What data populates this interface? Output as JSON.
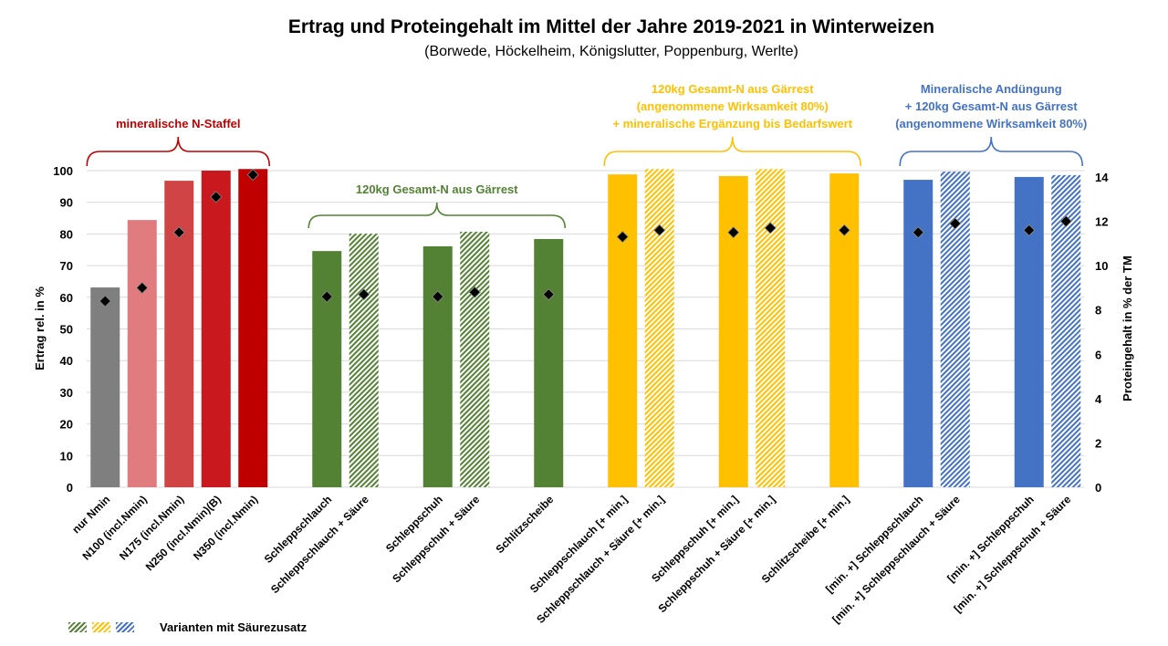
{
  "chart_data": {
    "type": "bar",
    "title": "Ertrag und Proteingehalt im Mittel der Jahre 2019-2021 in Winterweizen",
    "subtitle": "(Borwede, Höckelheim, Königslutter, Poppenburg, Werlte)",
    "ylabel": "Ertrag rel. in %",
    "y2label": "Proteingehalt in % der TM",
    "ylim": [
      0,
      100
    ],
    "y2lim": [
      0,
      14
    ],
    "yticks": [
      "0",
      "10",
      "20",
      "30",
      "40",
      "50",
      "60",
      "70",
      "80",
      "90",
      "100"
    ],
    "y2ticks": [
      "0",
      "2",
      "4",
      "6",
      "8",
      "10",
      "12",
      "14"
    ],
    "grid": true,
    "categories": [
      "nur Nmin",
      "N100 (incl.Nmin)",
      "N175 (incl.Nmin)",
      "N250 (incl.Nmin)(B)",
      "N350 (incl.Nmin)",
      "",
      "Schleppschlauch",
      "Schleppschlauch + Säure",
      "",
      "Schleppschuh",
      "Schleppschuh + Säure",
      "",
      "Schlitzscheibe",
      "",
      "Schleppschlauch [+ min.]",
      "Schleppschlauch + Säure [+ min.]",
      "",
      "Schleppschuh [+ min.]",
      "Schleppschuh + Säure [+ min.]",
      "",
      "Schlitzscheibe [+ min.]",
      "",
      "[min. +] Schleppschlauch",
      "[min. +] Schleppschlauch + Säure",
      "",
      "[min. +] Schleppschuh",
      "[min. +] Schleppschuh + Säure"
    ],
    "series": [
      {
        "name": "Ertrag rel. in %",
        "axis": "left",
        "values": [
          63.1,
          84.4,
          96.8,
          100,
          100.5,
          null,
          74.6,
          80.1,
          null,
          76.1,
          80.7,
          null,
          78.4,
          null,
          98.8,
          100.5,
          null,
          98.3,
          100.5,
          null,
          99.1,
          null,
          97.1,
          99.7,
          null,
          98.0,
          98.6
        ]
      },
      {
        "name": "Proteingehalt in % der TM",
        "axis": "right",
        "values": [
          8.4,
          9.0,
          11.5,
          13.1,
          14.1,
          null,
          8.6,
          8.7,
          null,
          8.6,
          8.8,
          null,
          8.7,
          null,
          11.3,
          11.6,
          null,
          11.5,
          11.7,
          null,
          11.6,
          null,
          11.5,
          11.9,
          null,
          11.6,
          12.0
        ]
      }
    ],
    "bar_colors": [
      "#7f7f7f",
      "#e07b7f",
      "#d04446",
      "#c9191e",
      "#c00000",
      null,
      "#548235",
      "#548235",
      null,
      "#548235",
      "#548235",
      null,
      "#548235",
      null,
      "#ffc000",
      "#ffc000",
      null,
      "#ffc000",
      "#ffc000",
      null,
      "#ffc000",
      null,
      "#4472c4",
      "#4472c4",
      null,
      "#4472c4",
      "#4472c4"
    ],
    "hatched": [
      false,
      false,
      false,
      false,
      false,
      false,
      false,
      true,
      false,
      false,
      true,
      false,
      false,
      false,
      false,
      true,
      false,
      false,
      true,
      false,
      false,
      false,
      false,
      true,
      false,
      false,
      true
    ],
    "annotations": [
      {
        "name": "mineral",
        "lines": [
          "mineralische N-Staffel"
        ],
        "color": "#c00000",
        "from": 0,
        "to": 4,
        "level": "high"
      },
      {
        "name": "gaerrest",
        "lines": [
          "120kg Gesamt-N aus Gärrest"
        ],
        "color": "#548235",
        "from": 6,
        "to": 12,
        "level": "low"
      },
      {
        "name": "gaerrest-min",
        "lines": [
          "120kg Gesamt-N aus Gärrest",
          "(angenommene Wirksamkeit 80%)",
          "+ mineralische Ergänzung bis Bedarfswert"
        ],
        "color": "#ffc000",
        "from": 14,
        "to": 20,
        "level": "high"
      },
      {
        "name": "min-gaerrest",
        "lines": [
          "Mineralische Andüngung",
          "+ 120kg Gesamt-N aus Gärrest",
          "(angenommene Wirksamkeit 80%)"
        ],
        "color": "#4472c4",
        "from": 22,
        "to": 26,
        "level": "high"
      }
    ],
    "legend": {
      "label": "Varianten mit Säurezusatz",
      "placement": "bottom-left",
      "colors": [
        "#548235",
        "#ffc000",
        "#4472c4"
      ]
    }
  }
}
